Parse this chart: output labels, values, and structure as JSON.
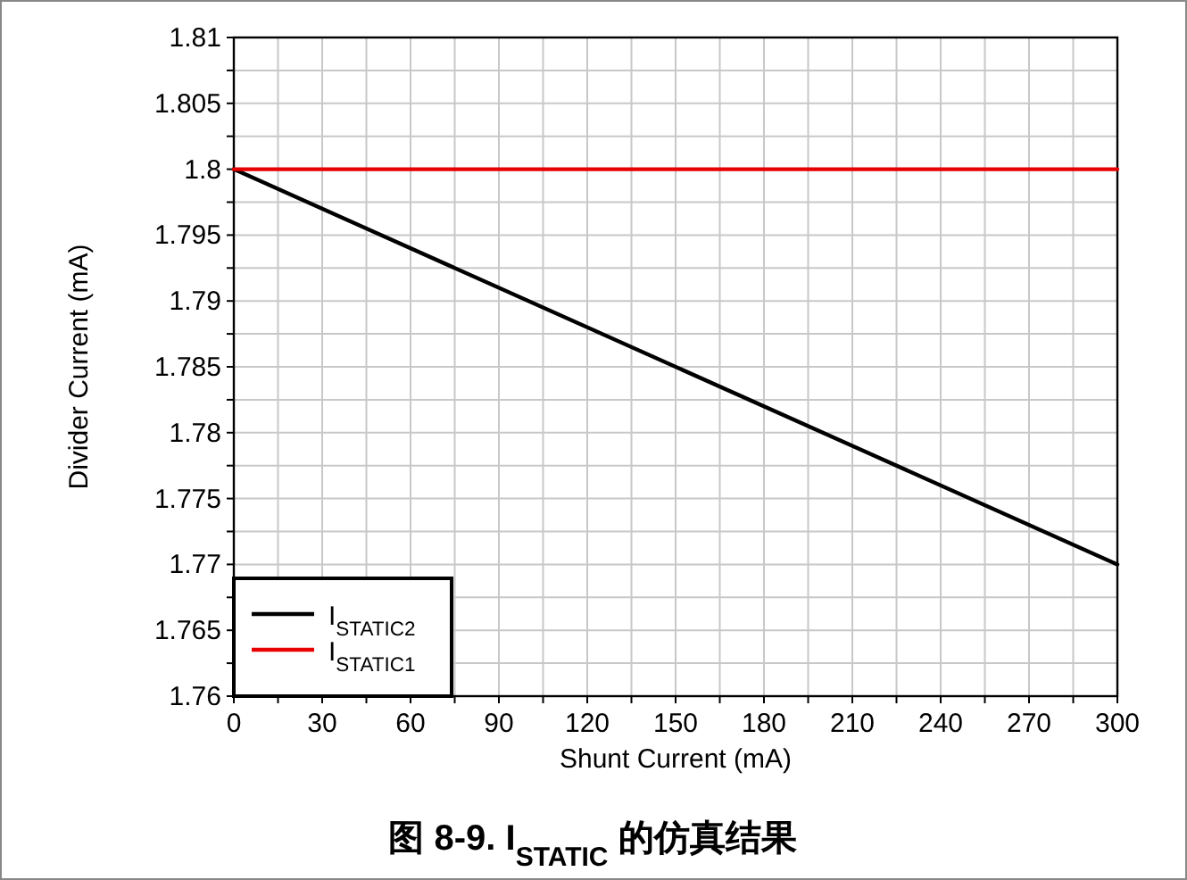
{
  "chart_data": {
    "type": "line",
    "title": "图 8-9. I$_{STATIC}$ 的仿真结果",
    "xlabel": "Shunt Current (mA)",
    "ylabel": "Divider Current (mA)",
    "x": [
      0,
      300
    ],
    "series": [
      {
        "name": "I$_{STATIC2}$",
        "color": "#000000",
        "values": [
          1.8,
          1.77
        ]
      },
      {
        "name": "I$_{STATIC1}$",
        "color": "#e60000",
        "values": [
          1.8,
          1.8
        ]
      }
    ],
    "xlim": [
      0,
      300
    ],
    "xticks": [
      0,
      {
        "value": 15,
        "label": null
      },
      30,
      {
        "value": 45,
        "label": null
      },
      60,
      {
        "value": 75,
        "label": null
      },
      90,
      {
        "value": 105,
        "label": null
      },
      120,
      {
        "value": 135,
        "label": null
      },
      150,
      {
        "value": 165,
        "label": null
      },
      180,
      {
        "value": 195,
        "label": null
      },
      210,
      {
        "value": 225,
        "label": null
      },
      240,
      {
        "value": 255,
        "label": null
      },
      270,
      {
        "value": 285,
        "label": null
      },
      300
    ],
    "ylim": [
      1.76,
      1.81
    ],
    "yticks": [
      1.76,
      {
        "value": 1.7625,
        "label": null
      },
      1.765,
      {
        "value": 1.7675,
        "label": null
      },
      1.77,
      {
        "value": 1.7725,
        "label": null
      },
      1.775,
      {
        "value": 1.7775,
        "label": null
      },
      1.78,
      {
        "value": 1.7825,
        "label": null
      },
      1.785,
      {
        "value": 1.7875,
        "label": null
      },
      1.79,
      {
        "value": 1.7925,
        "label": null
      },
      1.795,
      {
        "value": 1.7975,
        "label": null
      },
      1.8,
      {
        "value": 1.8025,
        "label": null
      },
      1.805,
      {
        "value": 1.8075,
        "label": null
      },
      1.81
    ],
    "grid": true,
    "legend": "bottom left",
    "marker": "none",
    "line_style": "solid"
  }
}
